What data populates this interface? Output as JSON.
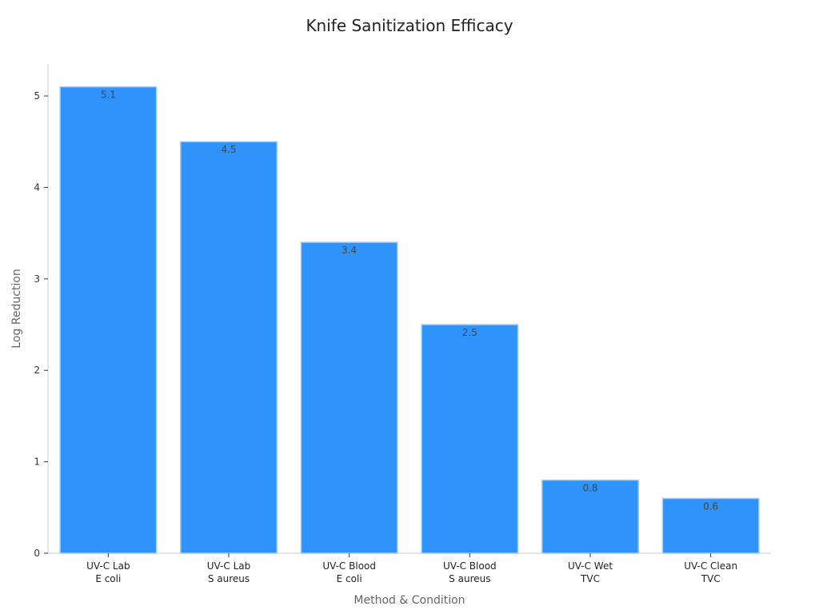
{
  "chart_data": {
    "type": "bar",
    "title": "Knife Sanitization Efficacy",
    "xlabel": "Method & Condition",
    "ylabel": "Log Reduction",
    "categories": [
      [
        "UV-C Lab",
        "E coli"
      ],
      [
        "UV-C Lab",
        "S aureus"
      ],
      [
        "UV-C Blood",
        "E coli"
      ],
      [
        "UV-C Blood",
        "S aureus"
      ],
      [
        "UV-C Wet",
        "TVC"
      ],
      [
        "UV-C Clean",
        "TVC"
      ]
    ],
    "values": [
      5.1,
      4.5,
      3.4,
      2.5,
      0.8,
      0.6
    ],
    "data_labels": [
      "5.1",
      "4.5",
      "3.4",
      "2.5",
      "0.8",
      "0.6"
    ],
    "y_ticks": [
      0,
      1,
      2,
      3,
      4,
      5
    ],
    "ylim": [
      0,
      5.35
    ],
    "grid": false,
    "legend": "none",
    "colors": {
      "bar": "#2e93fa",
      "bar_edge": "#a9cdf7",
      "axis": "#cccccc"
    }
  }
}
